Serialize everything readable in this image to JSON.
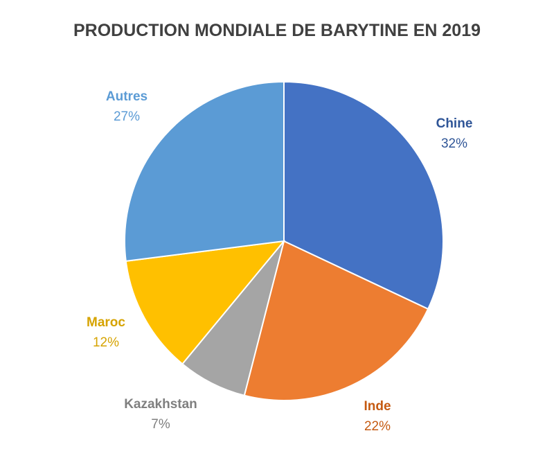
{
  "chart_data": {
    "type": "pie",
    "title": "PRODUCTION MONDIALE DE BARYTINE EN 2019",
    "slices": [
      {
        "name": "Chine",
        "value": 32,
        "label": "32%",
        "color": "#4472c4"
      },
      {
        "name": "Inde",
        "value": 22,
        "label": "22%",
        "color": "#ed7d31"
      },
      {
        "name": "Kazakhstan",
        "value": 7,
        "label": "7%",
        "color": "#a5a5a5"
      },
      {
        "name": "Maroc",
        "value": 12,
        "label": "12%",
        "color": "#ffc000"
      },
      {
        "name": "Autres",
        "value": 27,
        "label": "27%",
        "color": "#5b9bd5"
      }
    ],
    "label_colors": {
      "Chine": "#2f5597",
      "Inde": "#c55a11",
      "Kazakhstan": "#7f7f7f",
      "Maroc": "#d6a300",
      "Autres": "#5b9bd5"
    },
    "start_angle_deg": 0,
    "direction": "clockwise",
    "legend": "none"
  }
}
